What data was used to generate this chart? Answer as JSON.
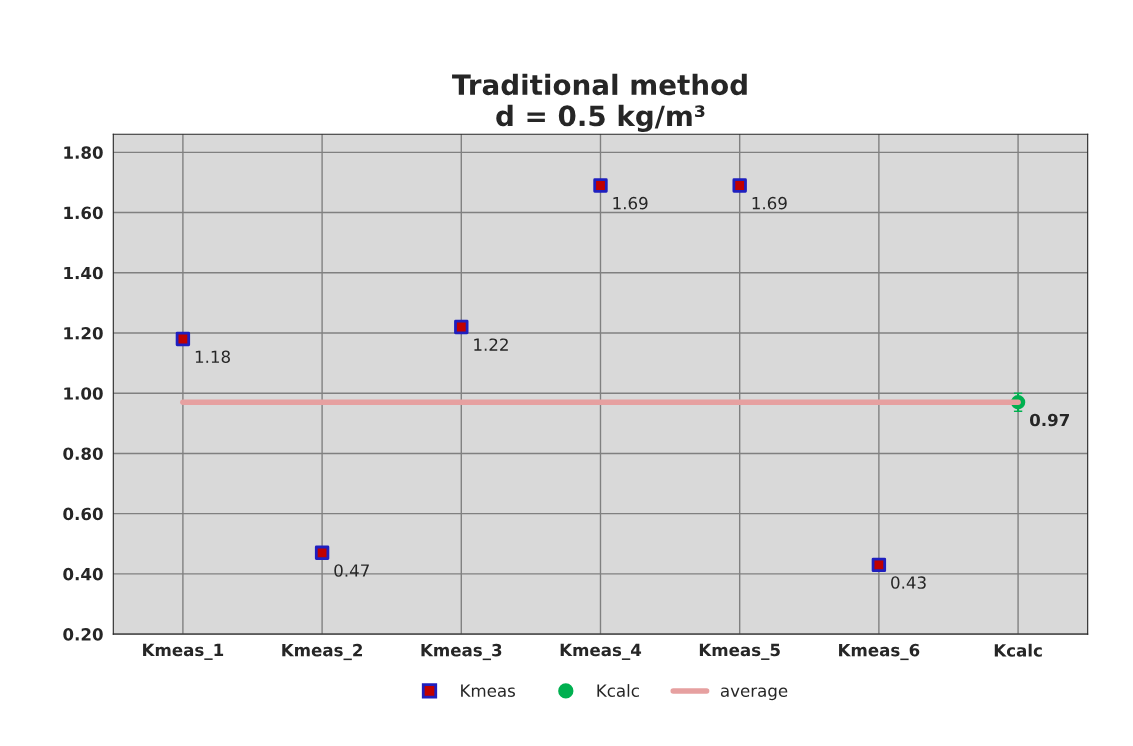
{
  "chart_data": {
    "type": "scatter",
    "title": "Traditional method\nd = 0.5 kg/m³",
    "categories": [
      "Kmeas_1",
      "Kmeas_2",
      "Kmeas_3",
      "Kmeas_4",
      "Kmeas_5",
      "Kmeas_6",
      "Kcalc"
    ],
    "series": [
      {
        "name": "Kmeas",
        "marker": "square",
        "color": "#c00000",
        "values": [
          1.18,
          0.47,
          1.22,
          1.69,
          1.69,
          0.43,
          null
        ],
        "value_labels": [
          "1.18",
          "0.47",
          "1.22",
          "1.69",
          "1.69",
          "0.43",
          null
        ]
      },
      {
        "name": "Kcalc",
        "marker": "circle",
        "color": "#00b050",
        "values": [
          null,
          null,
          null,
          null,
          null,
          null,
          0.97
        ],
        "errors": [
          null,
          null,
          null,
          null,
          null,
          null,
          0.03
        ],
        "value_labels": [
          null,
          null,
          null,
          null,
          null,
          null,
          "0.97"
        ]
      },
      {
        "name": "average",
        "type": "line",
        "marker": "none",
        "color": "#e6a0a0",
        "values": [
          0.97,
          0.97,
          0.97,
          0.97,
          0.97,
          0.97,
          0.97
        ]
      }
    ],
    "ylim": [
      0.2,
      1.86
    ],
    "yticks": [
      {
        "value": 0.2,
        "label": "0.20"
      },
      {
        "value": 0.4,
        "label": "0.40"
      },
      {
        "value": 0.6,
        "label": "0.60"
      },
      {
        "value": 0.8,
        "label": "0.80"
      },
      {
        "value": 1.0,
        "label": "1.00"
      },
      {
        "value": 1.2,
        "label": "1.20"
      },
      {
        "value": 1.4,
        "label": "1.40"
      },
      {
        "value": 1.6,
        "label": "1.60"
      },
      {
        "value": 1.8,
        "label": "1.80"
      }
    ],
    "grid": true,
    "legend": "bottom"
  }
}
